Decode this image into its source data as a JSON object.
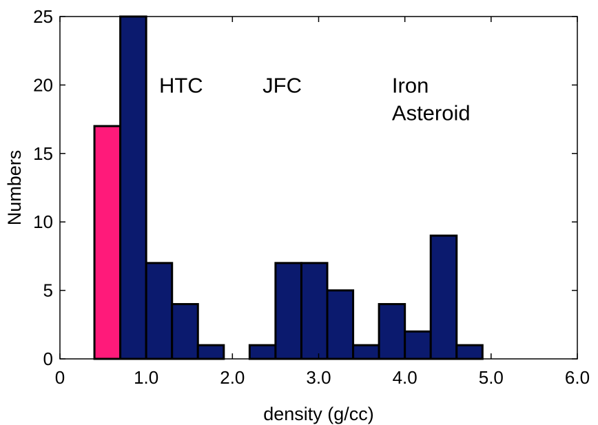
{
  "chart_data": {
    "type": "bar",
    "xlabel": "density (g/cc)",
    "ylabel": "Numbers",
    "xlim": [
      0,
      6
    ],
    "ylim": [
      0,
      25
    ],
    "x_ticks": [
      {
        "value": 0,
        "label": "0"
      },
      {
        "value": 1,
        "label": "1.0"
      },
      {
        "value": 2,
        "label": "2.0"
      },
      {
        "value": 3,
        "label": "3.0"
      },
      {
        "value": 4,
        "label": "4.0"
      },
      {
        "value": 5,
        "label": "5.0"
      },
      {
        "value": 6,
        "label": "6.0"
      }
    ],
    "y_ticks": [
      {
        "value": 0,
        "label": "0"
      },
      {
        "value": 5,
        "label": "5"
      },
      {
        "value": 10,
        "label": "10"
      },
      {
        "value": 15,
        "label": "15"
      },
      {
        "value": 20,
        "label": "20"
      },
      {
        "value": 25,
        "label": "25"
      }
    ],
    "bin_width": 0.3,
    "bars": [
      {
        "x": 0.55,
        "value": 17,
        "color": "#ff1a7a"
      },
      {
        "x": 0.85,
        "value": 25,
        "color": "#0b1a6e"
      },
      {
        "x": 1.15,
        "value": 7,
        "color": "#0b1a6e"
      },
      {
        "x": 1.45,
        "value": 4,
        "color": "#0b1a6e"
      },
      {
        "x": 1.75,
        "value": 1,
        "color": "#0b1a6e"
      },
      {
        "x": 2.05,
        "value": 0,
        "color": "#0b1a6e"
      },
      {
        "x": 2.35,
        "value": 1,
        "color": "#0b1a6e"
      },
      {
        "x": 2.65,
        "value": 7,
        "color": "#0b1a6e"
      },
      {
        "x": 2.95,
        "value": 7,
        "color": "#0b1a6e"
      },
      {
        "x": 3.25,
        "value": 5,
        "color": "#0b1a6e"
      },
      {
        "x": 3.55,
        "value": 1,
        "color": "#0b1a6e"
      },
      {
        "x": 3.85,
        "value": 4,
        "color": "#0b1a6e"
      },
      {
        "x": 4.15,
        "value": 2,
        "color": "#0b1a6e"
      },
      {
        "x": 4.45,
        "value": 9,
        "color": "#0b1a6e"
      },
      {
        "x": 4.75,
        "value": 1,
        "color": "#0b1a6e"
      }
    ],
    "annotations": [
      {
        "name": "annotation-htc",
        "lines": [
          "HTC"
        ],
        "x": 1.15,
        "y": 20
      },
      {
        "name": "annotation-jfc",
        "lines": [
          "JFC"
        ],
        "x": 2.35,
        "y": 20
      },
      {
        "name": "annotation-iron-asteroid",
        "lines": [
          "Iron",
          "Asteroid"
        ],
        "x": 3.85,
        "y": 20
      }
    ],
    "grid": false,
    "colors": {
      "primary": "#0b1a6e",
      "highlight": "#ff1a7a"
    }
  }
}
